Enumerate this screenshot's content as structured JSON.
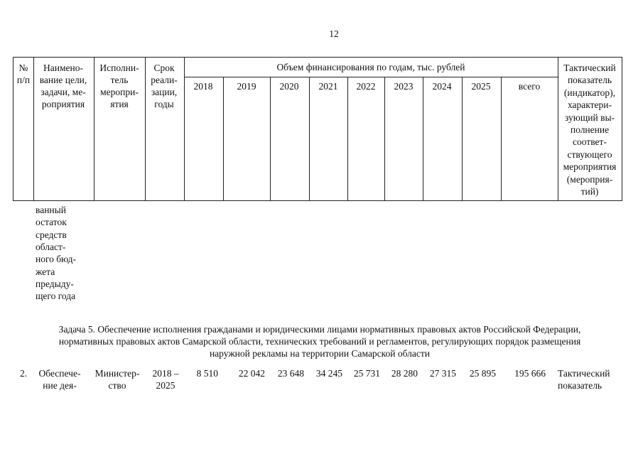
{
  "page_number": "12",
  "table_header": {
    "number": [
      "№",
      "п/п"
    ],
    "name": [
      "Наимено-",
      "вание цели,",
      "задачи, ме-",
      "роприятия"
    ],
    "executor": [
      "Исполни-",
      "тель",
      "меропри-",
      "ятия"
    ],
    "term": [
      "Срок",
      "реали-",
      "зации,",
      "годы"
    ],
    "funding_title": "Объем финансирования по годам, тыс. рублей",
    "years": [
      "2018",
      "2019",
      "2020",
      "2021",
      "2022",
      "2023",
      "2024",
      "2025",
      "всего"
    ],
    "indicator": [
      "Тактический",
      "показатель",
      "(индикатор),",
      "характери-",
      "зующий вы-",
      "полнение",
      "соответ-",
      "ствующего",
      "мероприятия",
      "(мероприя-",
      "тий)"
    ]
  },
  "continuation_lines": [
    "ванный",
    "остаток",
    "средств",
    "област-",
    "ного бюд-",
    "жета",
    "предыду-",
    "щего года"
  ],
  "task": [
    "Задача 5. Обеспечение исполнения гражданами и юридическими лицами нормативных правовых актов Российской Федерации,",
    "нормативных правовых актов Самарской области, технических требований и регламентов, регулирующих порядок размещения",
    "наружной рекламы на территории Самарской области"
  ],
  "row": {
    "number": "2.",
    "name": [
      "Обеспече-",
      "ние дея-"
    ],
    "executor": [
      "Министер-",
      "ство"
    ],
    "term": [
      "2018 –",
      "2025"
    ],
    "values": [
      "8 510",
      "22 042",
      "23 648",
      "34 245",
      "25 731",
      "28 280",
      "27 315",
      "25 895",
      "195 666"
    ],
    "indicator": [
      "Тактический",
      "показатель"
    ]
  }
}
